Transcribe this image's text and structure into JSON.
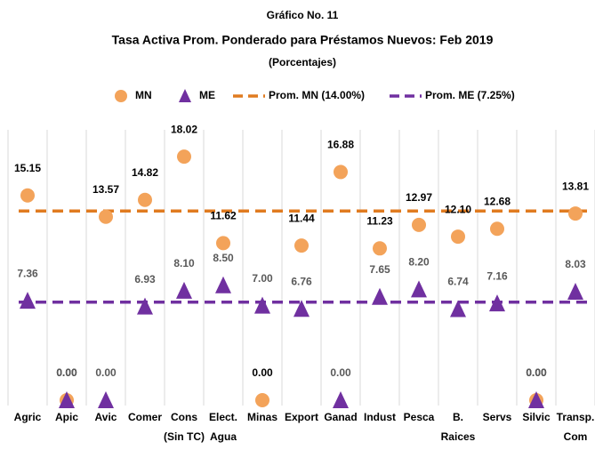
{
  "chart_data": {
    "type": "scatter",
    "kicker": "Gráfico No. 11",
    "title": "Tasa Activa Prom. Ponderado para Préstamos Nuevos: Feb 2019",
    "subtitle": "(Porcentajes)",
    "categories": [
      "Agric",
      "Apic",
      "Avic",
      "Comer",
      "Cons (Sin TC)",
      "Elect. Agua",
      "Minas",
      "Export",
      "Ganad",
      "Indust",
      "Pesca",
      "B. Raices",
      "Servs",
      "Silvic",
      "Transp. Com"
    ],
    "series": [
      {
        "name": "MN",
        "marker": "circle",
        "color": "#f3a35a",
        "values": [
          15.15,
          0,
          13.57,
          14.82,
          18.02,
          11.62,
          0,
          11.44,
          16.88,
          11.23,
          12.97,
          12.1,
          12.68,
          0,
          13.81
        ],
        "value_labels": [
          "15.15",
          "0.00",
          "13.57",
          "14.82",
          "18.02",
          "11.62",
          "0.00",
          "11.44",
          "16.88",
          "11.23",
          "12.97",
          "12.10",
          "12.68",
          "0.00",
          "13.81"
        ]
      },
      {
        "name": "ME",
        "marker": "triangle",
        "color": "#7030a0",
        "values": [
          7.36,
          0,
          0,
          6.93,
          8.1,
          8.5,
          7,
          6.76,
          0,
          7.65,
          8.2,
          6.74,
          7.16,
          0,
          8.03
        ],
        "value_labels": [
          "7.36",
          "0.00",
          "0.00",
          "6.93",
          "8.10",
          "8.50",
          "7.00",
          "6.76",
          "0.00",
          "7.65",
          "8.20",
          "6.74",
          "7.16",
          "0.00",
          "8.03"
        ]
      }
    ],
    "reference_lines": [
      {
        "name": "Prom. MN (14.00%)",
        "value": 14,
        "color": "#e07b20"
      },
      {
        "name": "Prom. ME (7.25%)",
        "value": 7.25,
        "color": "#7030a0"
      }
    ],
    "ylim": [
      0,
      20
    ]
  }
}
